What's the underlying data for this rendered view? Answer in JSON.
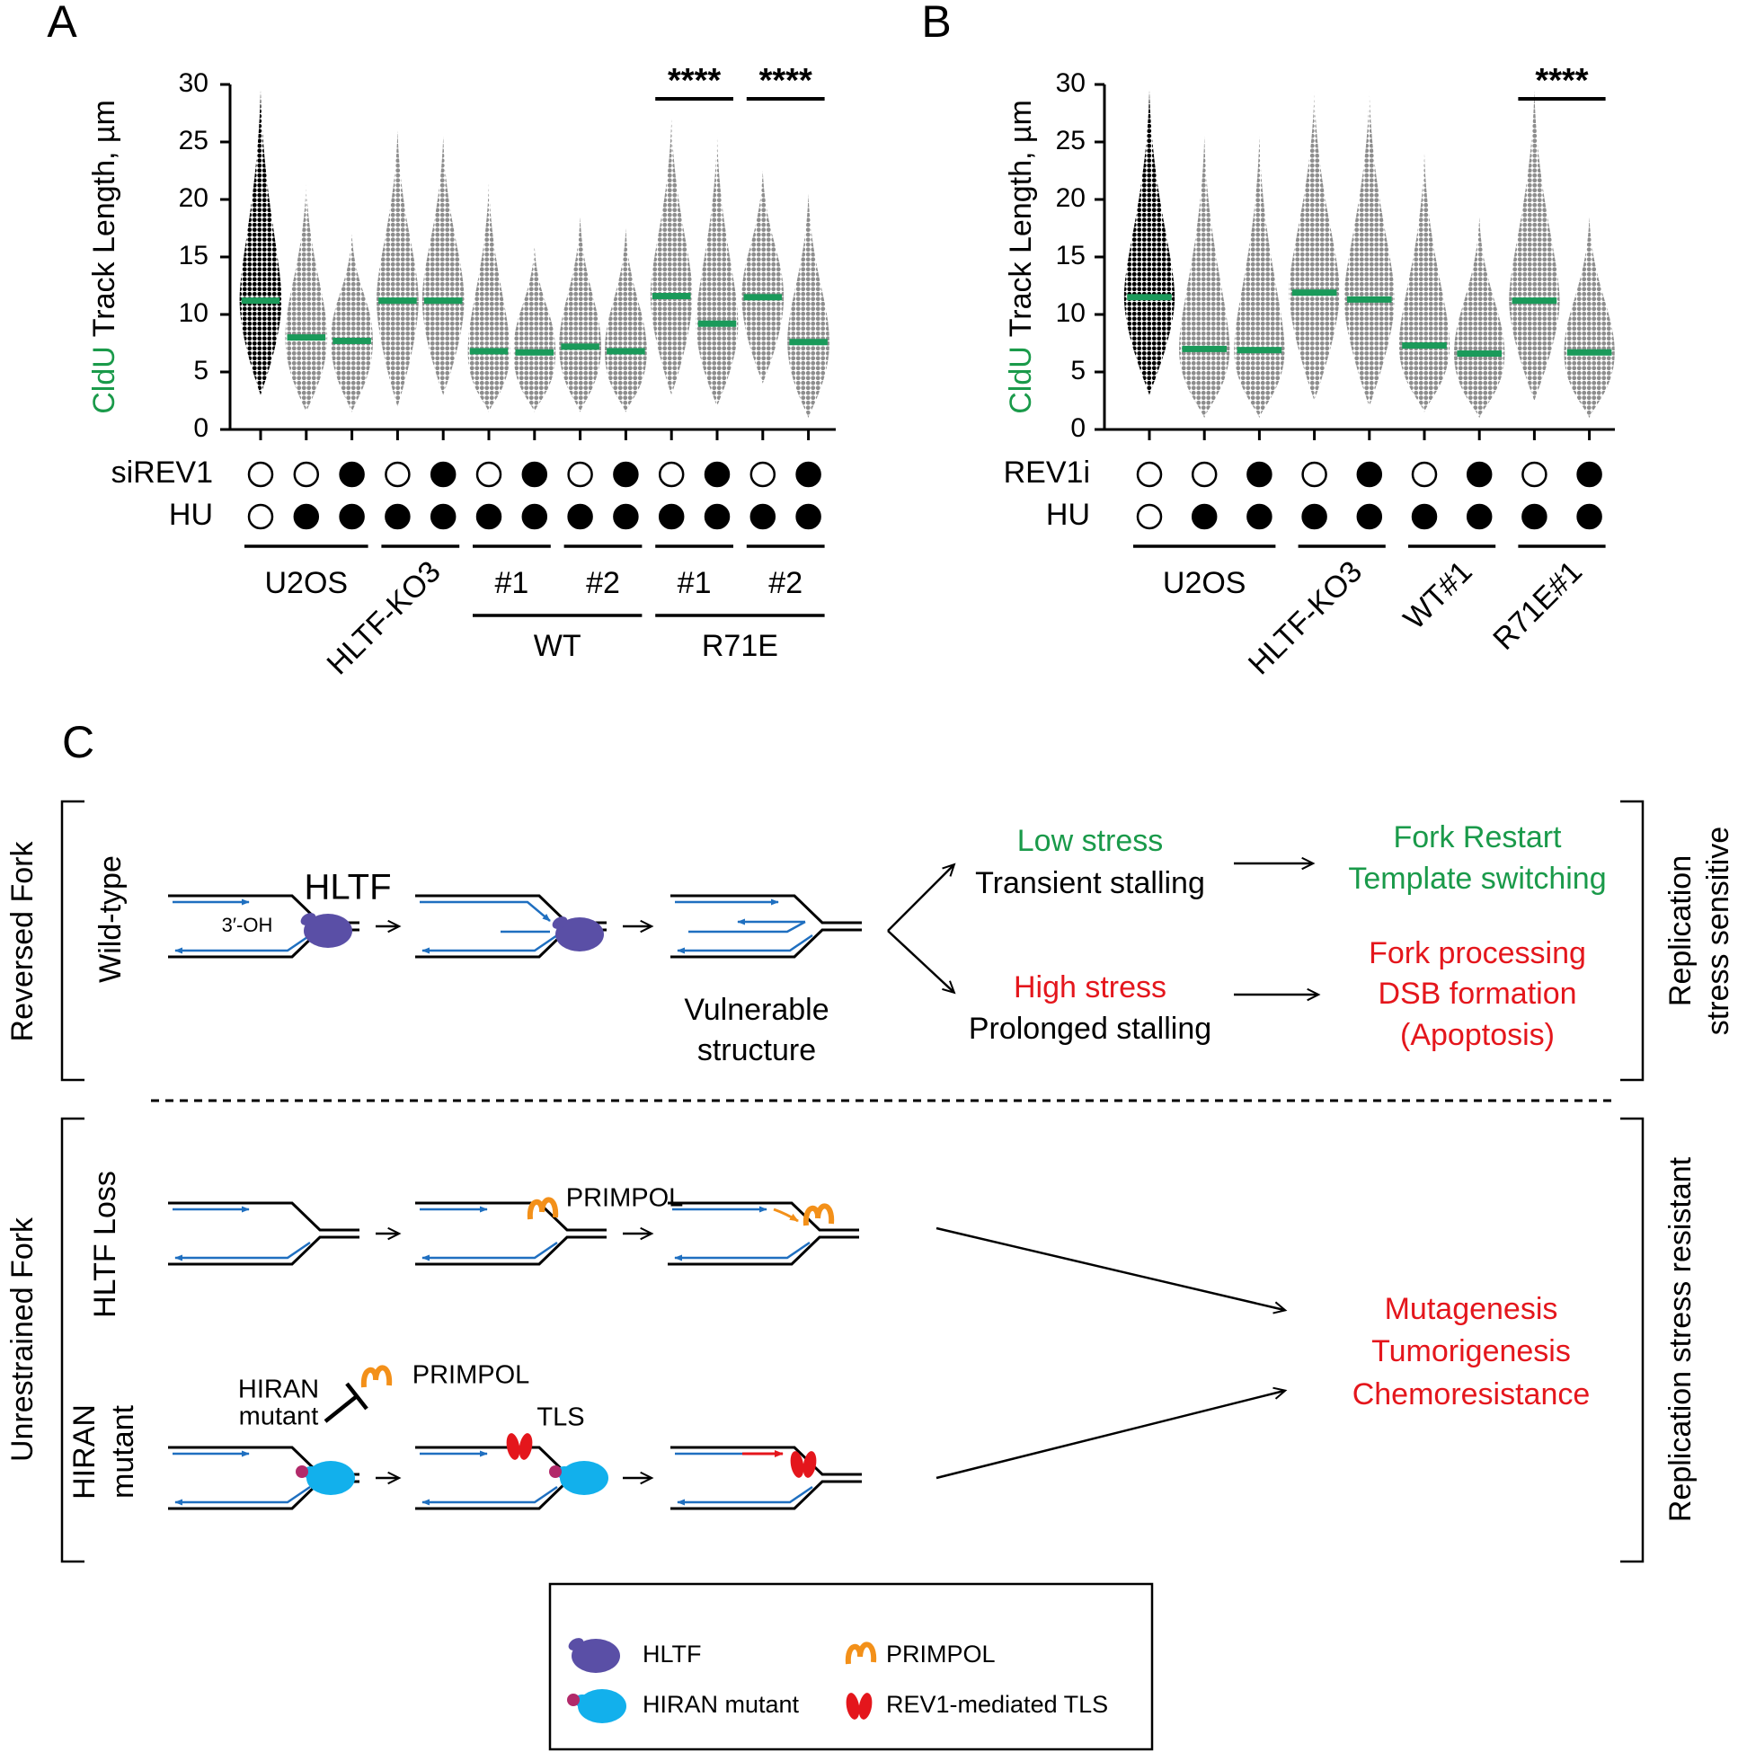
{
  "chart_data": [
    {
      "type": "dot",
      "panel_label": "A",
      "y_label_highlight": "CldU",
      "y_label": "Track Length, µm",
      "ylim": [
        0,
        30
      ],
      "yticks": [
        0,
        5,
        10,
        15,
        20,
        25,
        30
      ],
      "categories": [
        null,
        null,
        null,
        null,
        null,
        null,
        null,
        null,
        null,
        null,
        null,
        null,
        null
      ],
      "values": [
        11.2,
        8.0,
        7.7,
        11.2,
        11.2,
        6.8,
        6.7,
        7.2,
        6.8,
        11.6,
        9.2,
        11.5,
        7.6
      ],
      "min": [
        3,
        1.5,
        1.5,
        2,
        3,
        1.5,
        1.5,
        1.5,
        1.5,
        3,
        2,
        4,
        1
      ],
      "max": [
        29.5,
        21.5,
        17,
        26,
        25.5,
        21.5,
        16,
        18.5,
        17.5,
        27,
        25.5,
        22.5,
        20.5
      ],
      "point_colors": [
        "#000000",
        "#8e8e8e",
        "#8e8e8e",
        "#8e8e8e",
        "#8e8e8e",
        "#8e8e8e",
        "#8e8e8e",
        "#8e8e8e",
        "#8e8e8e",
        "#8e8e8e",
        "#8e8e8e",
        "#8e8e8e",
        "#8e8e8e"
      ],
      "median_color": "#1a9a5a",
      "conditions": [
        {
          "name": "siREV1",
          "values": [
            false,
            false,
            true,
            false,
            true,
            false,
            true,
            false,
            true,
            false,
            true,
            false,
            true
          ]
        },
        {
          "name": "HU",
          "values": [
            false,
            true,
            true,
            true,
            true,
            true,
            true,
            true,
            true,
            true,
            true,
            true,
            true
          ]
        }
      ],
      "groups": [
        {
          "label": "U2OS",
          "span": [
            0,
            2
          ]
        },
        {
          "label": "HLTF-KO3",
          "span": [
            3,
            4
          ],
          "rotated": true
        },
        {
          "label": "#1",
          "span": [
            5,
            6
          ]
        },
        {
          "label": "#2",
          "span": [
            7,
            8
          ]
        },
        {
          "label": "#1",
          "span": [
            9,
            10
          ]
        },
        {
          "label": "#2",
          "span": [
            11,
            12
          ]
        }
      ],
      "super_groups": [
        {
          "label": "WT",
          "span": [
            5,
            8
          ]
        },
        {
          "label": "R71E",
          "span": [
            9,
            12
          ]
        }
      ],
      "significance": [
        {
          "label": "****",
          "span": [
            9,
            10
          ]
        },
        {
          "label": "****",
          "span": [
            11,
            12
          ]
        }
      ]
    },
    {
      "type": "dot",
      "panel_label": "B",
      "y_label_highlight": "CldU",
      "y_label": "Track Length, µm",
      "ylim": [
        0,
        30
      ],
      "yticks": [
        0,
        5,
        10,
        15,
        20,
        25,
        30
      ],
      "categories": [
        null,
        null,
        null,
        null,
        null,
        null,
        null,
        null,
        null
      ],
      "values": [
        11.5,
        7.0,
        6.9,
        11.9,
        11.3,
        7.3,
        6.6,
        11.2,
        6.7
      ],
      "min": [
        3,
        1,
        1,
        2.5,
        2,
        1.5,
        1,
        2.5,
        1
      ],
      "max": [
        29.5,
        25.5,
        25.5,
        29.5,
        29.5,
        24,
        18.5,
        29.5,
        18.5
      ],
      "point_colors": [
        "#000000",
        "#8e8e8e",
        "#8e8e8e",
        "#8e8e8e",
        "#8e8e8e",
        "#8e8e8e",
        "#8e8e8e",
        "#8e8e8e",
        "#8e8e8e"
      ],
      "median_color": "#1a9a5a",
      "conditions": [
        {
          "name": "REV1i",
          "values": [
            false,
            false,
            true,
            false,
            true,
            false,
            true,
            false,
            true
          ]
        },
        {
          "name": "HU",
          "values": [
            false,
            true,
            true,
            true,
            true,
            true,
            true,
            true,
            true
          ]
        }
      ],
      "groups": [
        {
          "label": "U2OS",
          "span": [
            0,
            2
          ]
        },
        {
          "label": "HLTF-KO3",
          "span": [
            3,
            4
          ],
          "rotated": true
        },
        {
          "label": "WT#1",
          "span": [
            5,
            6
          ],
          "rotated": true
        },
        {
          "label": "R71E#1",
          "span": [
            7,
            8
          ],
          "rotated": true
        }
      ],
      "significance": [
        {
          "label": "****",
          "span": [
            7,
            8
          ]
        }
      ]
    }
  ],
  "diagram": {
    "panel_label": "C",
    "top_section": {
      "label": "Reversed Fork",
      "row_label": "Wild-type",
      "hltf": "HLTF",
      "oh": "3′-OH",
      "vulnerable": [
        "Vulnerable",
        "structure"
      ],
      "low_stress": "Low stress",
      "transient": "Transient stalling",
      "high_stress": "High stress",
      "prolonged": "Prolonged stalling",
      "restart": [
        "Fork Restart",
        "Template switching"
      ],
      "processing": [
        "Fork processing",
        "DSB formation",
        "(Apoptosis)"
      ],
      "side_label": [
        "Replication",
        "stress sensitive"
      ]
    },
    "bottom_section": {
      "label": "Unrestrained Fork",
      "row1_label": "HLTF Loss",
      "row2_label": [
        "HIRAN",
        "mutant"
      ],
      "primpol1": "PRIMPOL",
      "hiran_mutant": [
        "HIRAN",
        "mutant"
      ],
      "primpol2": "PRIMPOL",
      "tls": "TLS",
      "outcomes": [
        "Mutagenesis",
        "Tumorigenesis",
        "Chemoresistance"
      ],
      "side_label": "Replication stress resistant"
    },
    "legend": [
      "HLTF",
      "HIRAN mutant",
      "PRIMPOL",
      "REV1-mediated TLS"
    ]
  }
}
